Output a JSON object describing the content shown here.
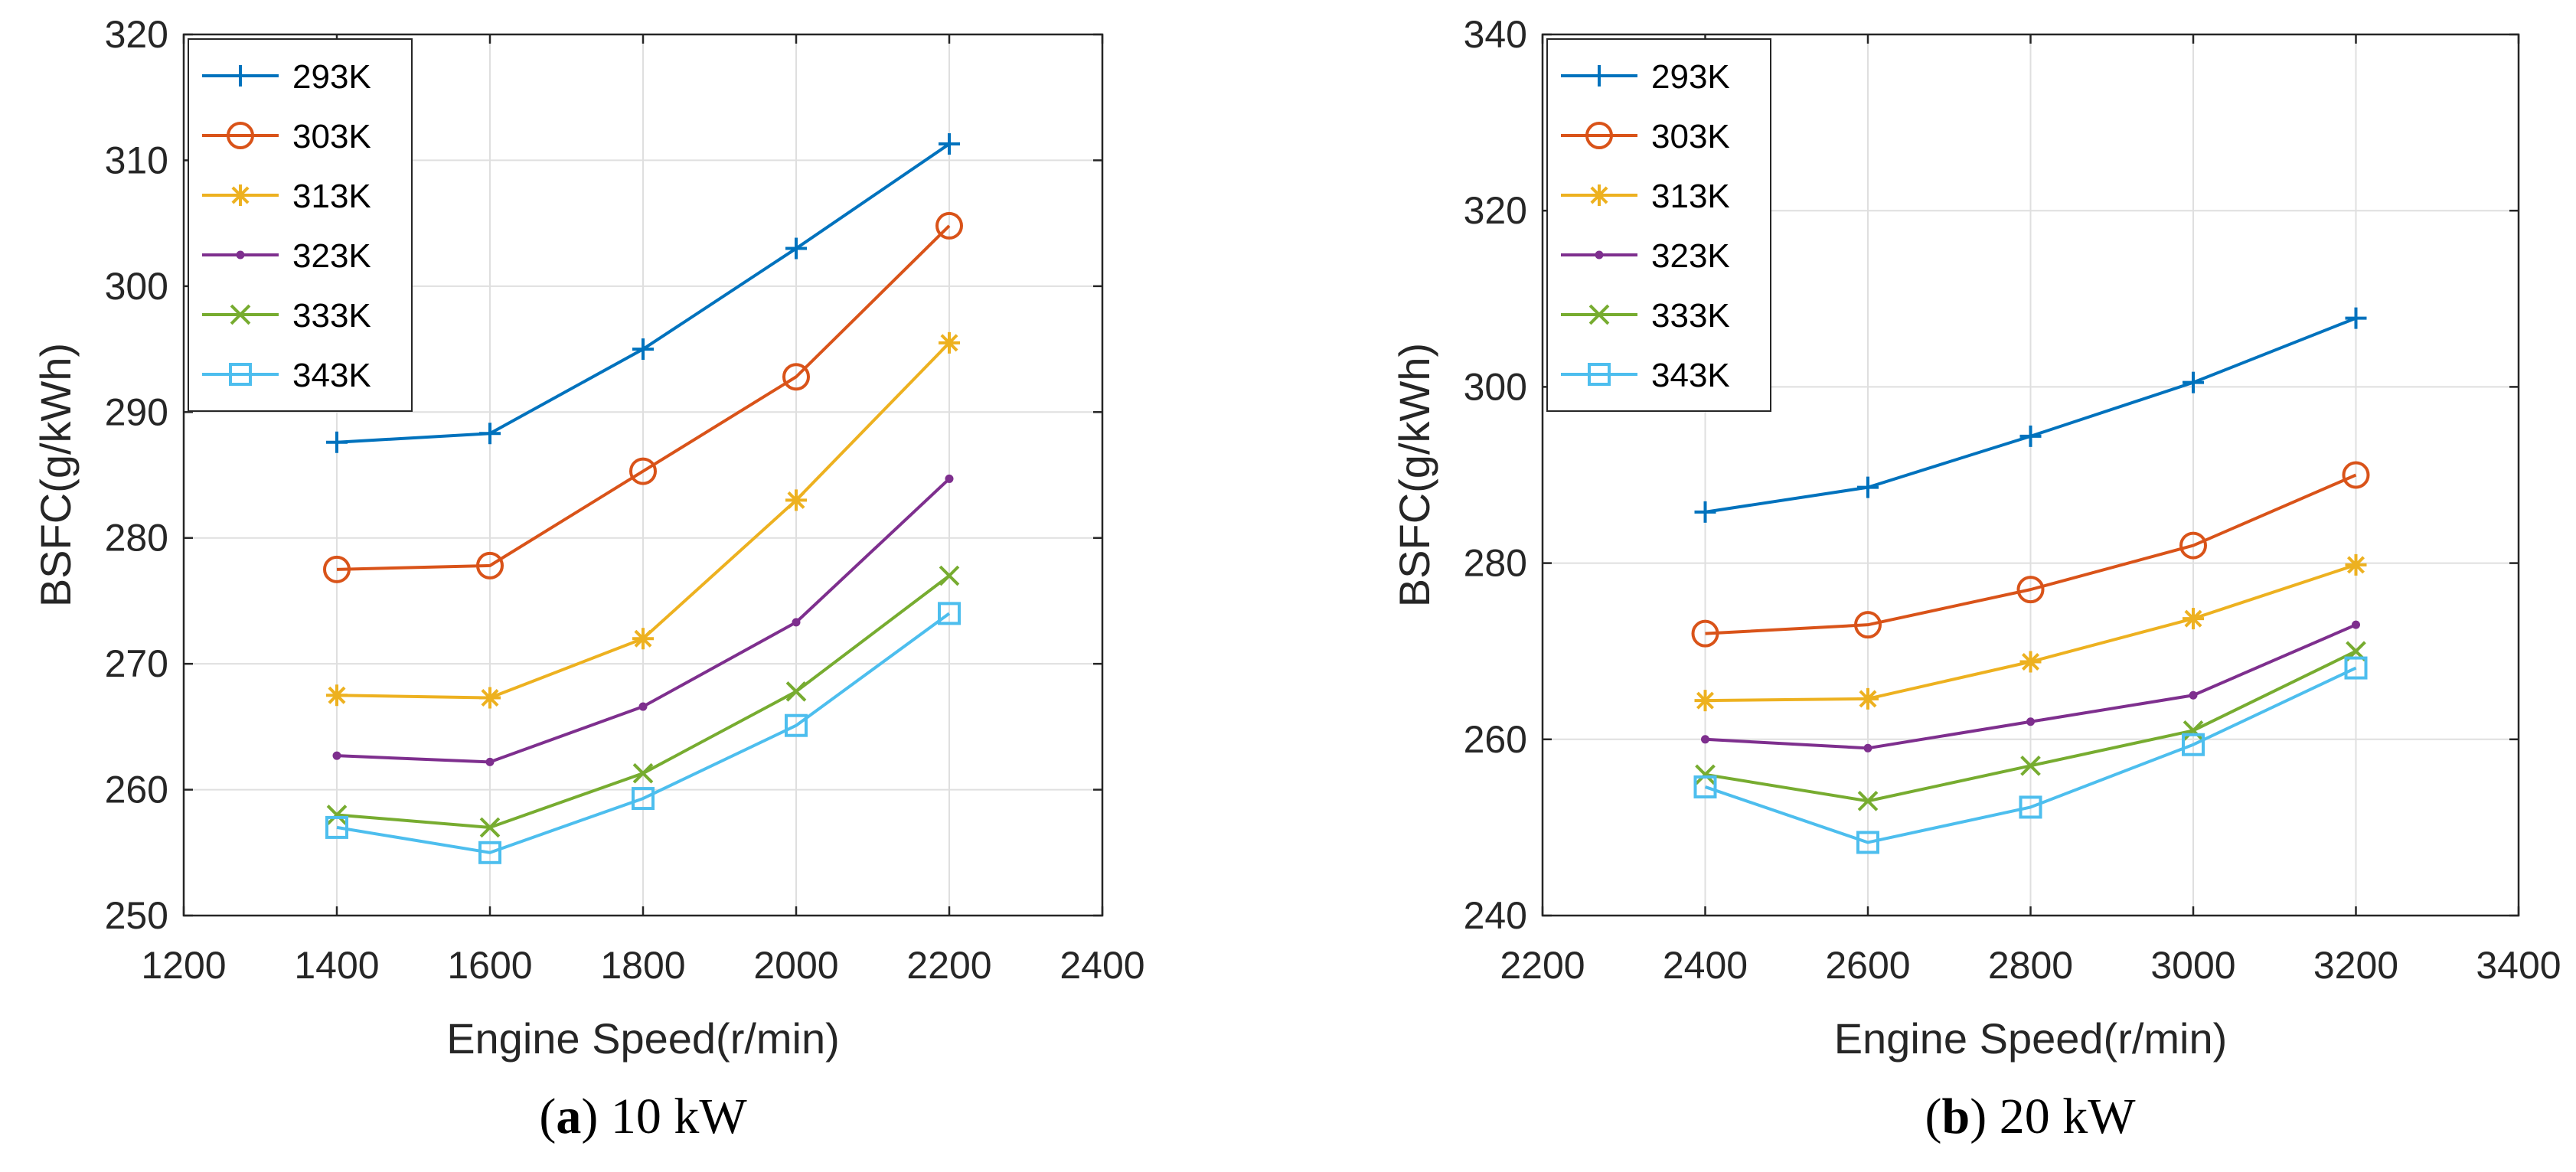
{
  "chart_data": [
    {
      "type": "line",
      "caption": {
        "open": "(",
        "letter": "a",
        "close": ")",
        "text": " 10 kW"
      },
      "xlabel": "Engine Speed(r/min)",
      "ylabel": "BSFC(g/kWh)",
      "xlim": [
        1200,
        2400
      ],
      "ylim": [
        250,
        320
      ],
      "xticks": [
        1200,
        1400,
        1600,
        1800,
        2000,
        2200,
        2400
      ],
      "yticks": [
        250,
        260,
        270,
        280,
        290,
        300,
        310,
        320
      ],
      "grid": true,
      "legend_position": "top-left",
      "x": [
        1400,
        1600,
        1800,
        2000,
        2200
      ],
      "series": [
        {
          "name": "293K",
          "color": "#0072BD",
          "marker": "plus",
          "values": [
            287.6,
            288.3,
            295.0,
            303.0,
            311.3
          ]
        },
        {
          "name": "303K",
          "color": "#D95319",
          "marker": "circle",
          "values": [
            277.5,
            277.8,
            285.3,
            292.8,
            304.8
          ]
        },
        {
          "name": "313K",
          "color": "#EDB120",
          "marker": "asterisk",
          "values": [
            267.5,
            267.3,
            272.0,
            283.0,
            295.5
          ]
        },
        {
          "name": "323K",
          "color": "#7E2F8E",
          "marker": "dot",
          "values": [
            262.7,
            262.2,
            266.6,
            273.3,
            284.7
          ]
        },
        {
          "name": "333K",
          "color": "#77AC30",
          "marker": "cross",
          "values": [
            258.0,
            257.0,
            261.3,
            267.8,
            277.0
          ]
        },
        {
          "name": "343K",
          "color": "#4DBEEE",
          "marker": "square",
          "values": [
            257.0,
            255.0,
            259.3,
            265.1,
            274.0
          ]
        }
      ]
    },
    {
      "type": "line",
      "caption": {
        "open": "(",
        "letter": "b",
        "close": ")",
        "text": " 20 kW"
      },
      "xlabel": "Engine Speed(r/min)",
      "ylabel": "BSFC(g/kWh)",
      "xlim": [
        2200,
        3400
      ],
      "ylim": [
        240,
        340
      ],
      "xticks": [
        2200,
        2400,
        2600,
        2800,
        3000,
        3200,
        3400
      ],
      "yticks": [
        240,
        260,
        280,
        300,
        320,
        340
      ],
      "grid": true,
      "legend_position": "top-left",
      "x": [
        2400,
        2600,
        2800,
        3000,
        3200
      ],
      "series": [
        {
          "name": "293K",
          "color": "#0072BD",
          "marker": "plus",
          "values": [
            285.8,
            288.6,
            294.4,
            300.5,
            307.8
          ]
        },
        {
          "name": "303K",
          "color": "#D95319",
          "marker": "circle",
          "values": [
            272.0,
            273.0,
            277.0,
            282.0,
            290.0
          ]
        },
        {
          "name": "313K",
          "color": "#EDB120",
          "marker": "asterisk",
          "values": [
            264.4,
            264.6,
            268.8,
            273.7,
            279.8
          ]
        },
        {
          "name": "323K",
          "color": "#7E2F8E",
          "marker": "dot",
          "values": [
            260.0,
            259.0,
            262.0,
            265.0,
            273.0
          ]
        },
        {
          "name": "333K",
          "color": "#77AC30",
          "marker": "cross",
          "values": [
            256.0,
            253.0,
            257.0,
            261.0,
            270.0
          ]
        },
        {
          "name": "343K",
          "color": "#4DBEEE",
          "marker": "square",
          "values": [
            254.6,
            248.3,
            252.3,
            259.4,
            268.1
          ]
        }
      ]
    }
  ]
}
